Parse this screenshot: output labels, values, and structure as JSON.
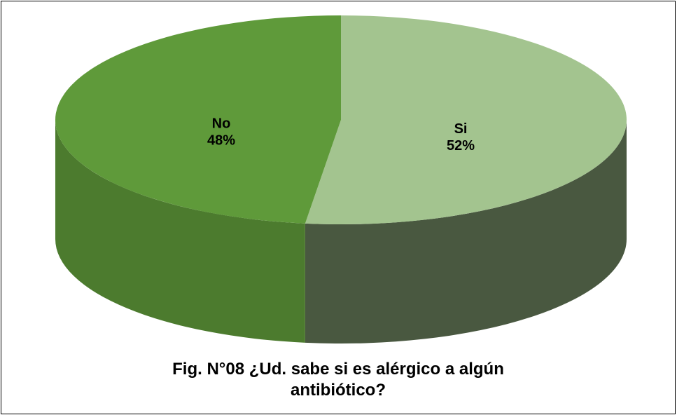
{
  "chart_data": {
    "type": "pie3d",
    "title": "Fig. N°08 ¿Ud. sabe si es alérgico a algún antibiótico?",
    "categories": [
      "Si",
      "No"
    ],
    "values": [
      52,
      48
    ],
    "value_labels": [
      "52%",
      "48%"
    ],
    "colors": [
      "#a3c48f",
      "#5f9a3a"
    ]
  }
}
